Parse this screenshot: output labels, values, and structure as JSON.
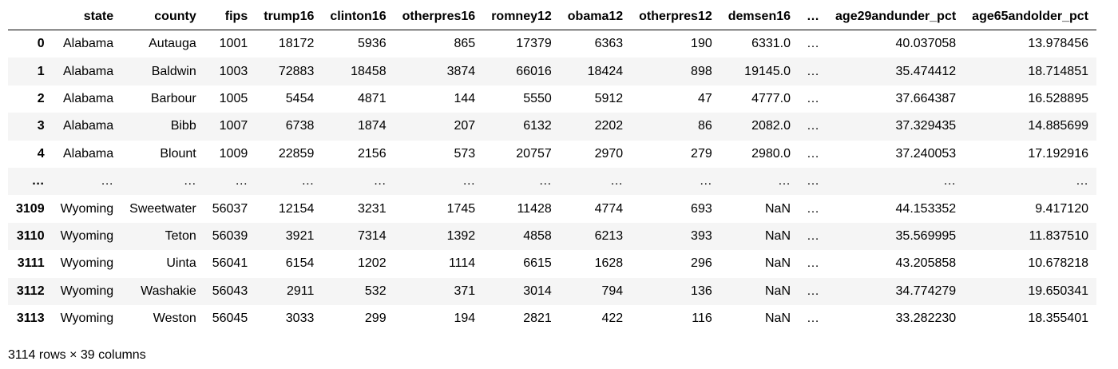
{
  "columns": [
    "",
    "state",
    "county",
    "fips",
    "trump16",
    "clinton16",
    "otherpres16",
    "romney12",
    "obama12",
    "otherpres12",
    "demsen16",
    "…",
    "age29andunder_pct",
    "age65andolder_pct"
  ],
  "rows": [
    [
      "0",
      "Alabama",
      "Autauga",
      "1001",
      "18172",
      "5936",
      "865",
      "17379",
      "6363",
      "190",
      "6331.0",
      "…",
      "40.037058",
      "13.978456"
    ],
    [
      "1",
      "Alabama",
      "Baldwin",
      "1003",
      "72883",
      "18458",
      "3874",
      "66016",
      "18424",
      "898",
      "19145.0",
      "…",
      "35.474412",
      "18.714851"
    ],
    [
      "2",
      "Alabama",
      "Barbour",
      "1005",
      "5454",
      "4871",
      "144",
      "5550",
      "5912",
      "47",
      "4777.0",
      "…",
      "37.664387",
      "16.528895"
    ],
    [
      "3",
      "Alabama",
      "Bibb",
      "1007",
      "6738",
      "1874",
      "207",
      "6132",
      "2202",
      "86",
      "2082.0",
      "…",
      "37.329435",
      "14.885699"
    ],
    [
      "4",
      "Alabama",
      "Blount",
      "1009",
      "22859",
      "2156",
      "573",
      "20757",
      "2970",
      "279",
      "2980.0",
      "…",
      "37.240053",
      "17.192916"
    ],
    [
      "…",
      "…",
      "…",
      "…",
      "…",
      "…",
      "…",
      "…",
      "…",
      "…",
      "…",
      "…",
      "…",
      "…"
    ],
    [
      "3109",
      "Wyoming",
      "Sweetwater",
      "56037",
      "12154",
      "3231",
      "1745",
      "11428",
      "4774",
      "693",
      "NaN",
      "…",
      "44.153352",
      "9.417120"
    ],
    [
      "3110",
      "Wyoming",
      "Teton",
      "56039",
      "3921",
      "7314",
      "1392",
      "4858",
      "6213",
      "393",
      "NaN",
      "…",
      "35.569995",
      "11.837510"
    ],
    [
      "3111",
      "Wyoming",
      "Uinta",
      "56041",
      "6154",
      "1202",
      "1114",
      "6615",
      "1628",
      "296",
      "NaN",
      "…",
      "43.205858",
      "10.678218"
    ],
    [
      "3112",
      "Wyoming",
      "Washakie",
      "56043",
      "2911",
      "532",
      "371",
      "3014",
      "794",
      "136",
      "NaN",
      "…",
      "34.774279",
      "19.650341"
    ],
    [
      "3113",
      "Wyoming",
      "Weston",
      "56045",
      "3033",
      "299",
      "194",
      "2821",
      "422",
      "116",
      "NaN",
      "…",
      "33.282230",
      "18.355401"
    ]
  ],
  "shape_text": "3114 rows × 39 columns"
}
